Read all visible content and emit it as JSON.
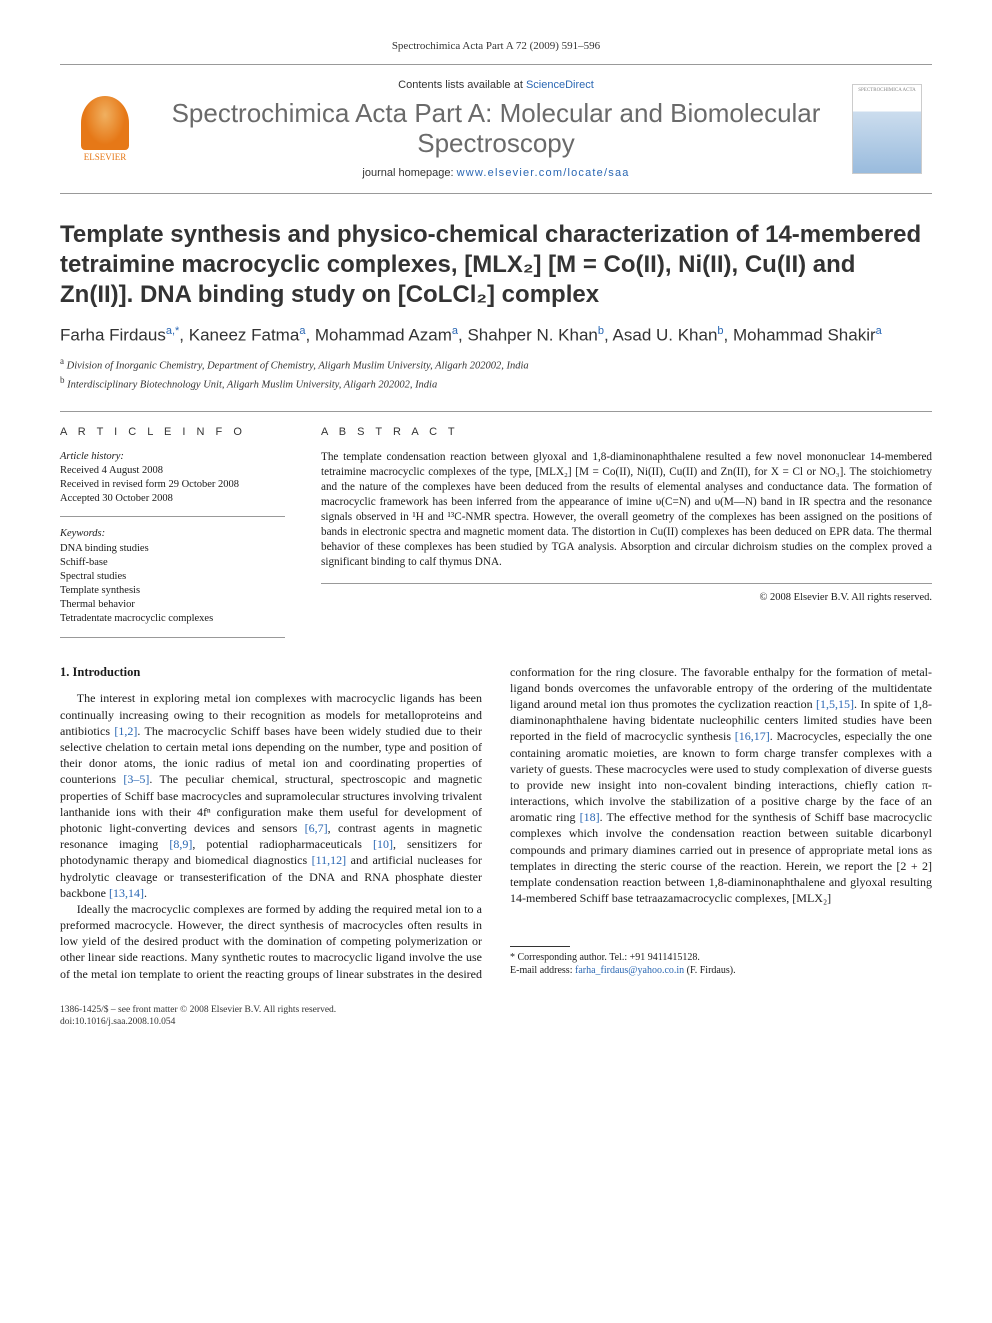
{
  "header": {
    "citation": "Spectrochimica Acta Part A 72 (2009) 591–596",
    "contents_prefix": "Contents lists available at ",
    "contents_link": "ScienceDirect",
    "journal_name": "Spectrochimica Acta Part A: Molecular and Biomolecular Spectroscopy",
    "homepage_prefix": "journal homepage: ",
    "homepage_url": "www.elsevier.com/locate/saa",
    "elsevier_label": "ELSEVIER",
    "cover_label": "SPECTROCHIMICA ACTA"
  },
  "title": "Template synthesis and physico-chemical characterization of 14-membered tetraimine macrocyclic complexes, [MLX₂] [M = Co(II), Ni(II), Cu(II) and Zn(II)]. DNA binding study on [CoLCl₂] complex",
  "authors_html": "Farha Firdaus<sup>a,*</sup>, Kaneez Fatma<sup>a</sup>, Mohammad Azam<sup>a</sup>, Shahper N. Khan<sup>b</sup>, Asad U. Khan<sup>b</sup>, Mohammad Shakir<sup>a</sup>",
  "affiliations": [
    {
      "sup": "a",
      "text": "Division of Inorganic Chemistry, Department of Chemistry, Aligarh Muslim University, Aligarh 202002, India"
    },
    {
      "sup": "b",
      "text": "Interdisciplinary Biotechnology Unit, Aligarh Muslim University, Aligarh 202002, India"
    }
  ],
  "info": {
    "left_heading": "A R T I C L E   I N F O",
    "right_heading": "A B S T R A C T",
    "history_label": "Article history:",
    "history": [
      "Received 4 August 2008",
      "Received in revised form 29 October 2008",
      "Accepted 30 October 2008"
    ],
    "keywords_label": "Keywords:",
    "keywords": [
      "DNA binding studies",
      "Schiff-base",
      "Spectral studies",
      "Template synthesis",
      "Thermal behavior",
      "Tetradentate macrocyclic complexes"
    ]
  },
  "abstract": "The template condensation reaction between glyoxal and 1,8-diaminonaphthalene resulted a few novel mononuclear 14-membered tetraimine macrocyclic complexes of the type, [MLX₂] [M = Co(II), Ni(II), Cu(II) and Zn(II), for X = Cl or NO₃]. The stoichiometry and the nature of the complexes have been deduced from the results of elemental analyses and conductance data. The formation of macrocyclic framework has been inferred from the appearance of imine υ(C=N) and υ(M—N) band in IR spectra and the resonance signals observed in ¹H and ¹³C-NMR spectra. However, the overall geometry of the complexes has been assigned on the positions of bands in electronic spectra and magnetic moment data. The distortion in Cu(II) complexes has been deduced on EPR data. The thermal behavior of these complexes has been studied by TGA analysis. Absorption and circular dichroism studies on the complex proved a significant binding to calf thymus DNA.",
  "copyright": "© 2008 Elsevier B.V. All rights reserved.",
  "section1_title": "1.  Introduction",
  "para1_pre": "The interest in exploring metal ion complexes with macrocyclic ligands has been continually increasing owing to their recognition as models for metalloproteins and antibiotics ",
  "ref_1_2": "[1,2]",
  "para1_mid1": ". The macrocyclic Schiff bases have been widely studied due to their selective chelation to certain metal ions depending on the number, type and position of their donor atoms, the ionic radius of metal ion and coordinating properties of counterions ",
  "ref_3_5": "[3–5]",
  "para1_mid2": ". The peculiar chemical, structural, spectroscopic and magnetic properties of Schiff base macrocycles and supramolecular structures involving trivalent lanthanide ions with their 4fⁿ configuration make them useful for development of photonic light-converting devices and sensors ",
  "ref_6_7": "[6,7]",
  "para1_mid3": ", contrast agents in magnetic resonance imaging ",
  "ref_8_9": "[8,9]",
  "para1_mid4": ", potential radiopharmaceuticals ",
  "ref_10": "[10]",
  "para1_mid5": ", sensitizers for photodynamic therapy and biomedical diagnostics ",
  "ref_11_12": "[11,12]",
  "para1_mid6": " and artificial nucleases for hydrolytic cleavage or transesterification of the DNA and RNA phosphate diester backbone ",
  "ref_13_14": "[13,14]",
  "para1_end": ".",
  "para2_pre": "Ideally the macrocyclic complexes are formed by adding the required metal ion to a preformed macrocycle. However, the direct synthesis of macrocycles often results in low yield of the desired product with the domination of competing polymerization or other linear side reactions. Many synthetic routes to macrocyclic ligand involve the use of the metal ion template to orient the reacting groups of linear substrates in the desired conformation for the ring closure. The favorable enthalpy for the formation of metal-ligand bonds overcomes the unfavorable entropy of the ordering of the multidentate ligand around metal ion thus promotes the cyclization reaction ",
  "ref_1_5_15": "[1,5,15]",
  "para2_mid1": ". In spite of 1,8-diaminonaphthalene having bidentate nucleophilic centers limited studies have been reported in the field of macrocyclic synthesis ",
  "ref_16_17": "[16,17]",
  "para2_mid2": ". Macrocycles, especially the one containing aromatic moieties, are known to form charge transfer complexes with a variety of guests. These macrocycles were used to study complexation of diverse guests to provide new insight into non-covalent binding interactions, chiefly cation π-interactions, which involve the stabilization of a positive charge by the face of an aromatic ring ",
  "ref_18": "[18]",
  "para2_end": ". The effective method for the synthesis of Schiff base macrocyclic complexes which involve the condensation reaction between suitable dicarbonyl compounds and primary diamines carried out in presence of appropriate metal ions as templates in directing the steric course of the reaction. Herein, we report the [2 + 2] template condensation reaction between 1,8-diaminonaphthalene and glyoxal resulting 14-membered Schiff base tetraazamacrocyclic complexes, [MLX₂]",
  "footnote": {
    "corr": "* Corresponding author. Tel.: +91 9411415128.",
    "email_label": "E-mail address: ",
    "email": "farha_firdaus@yahoo.co.in",
    "email_suffix": " (F. Firdaus)."
  },
  "footer": {
    "line1": "1386-1425/$ – see front matter © 2008 Elsevier B.V. All rights reserved.",
    "line2": "doi:10.1016/j.saa.2008.10.054"
  },
  "colors": {
    "link": "#2a67b3",
    "elsevier_orange": "#e67817",
    "rule": "#999999",
    "text": "#1a1a1a",
    "heading_gray": "#6a6a6a"
  }
}
